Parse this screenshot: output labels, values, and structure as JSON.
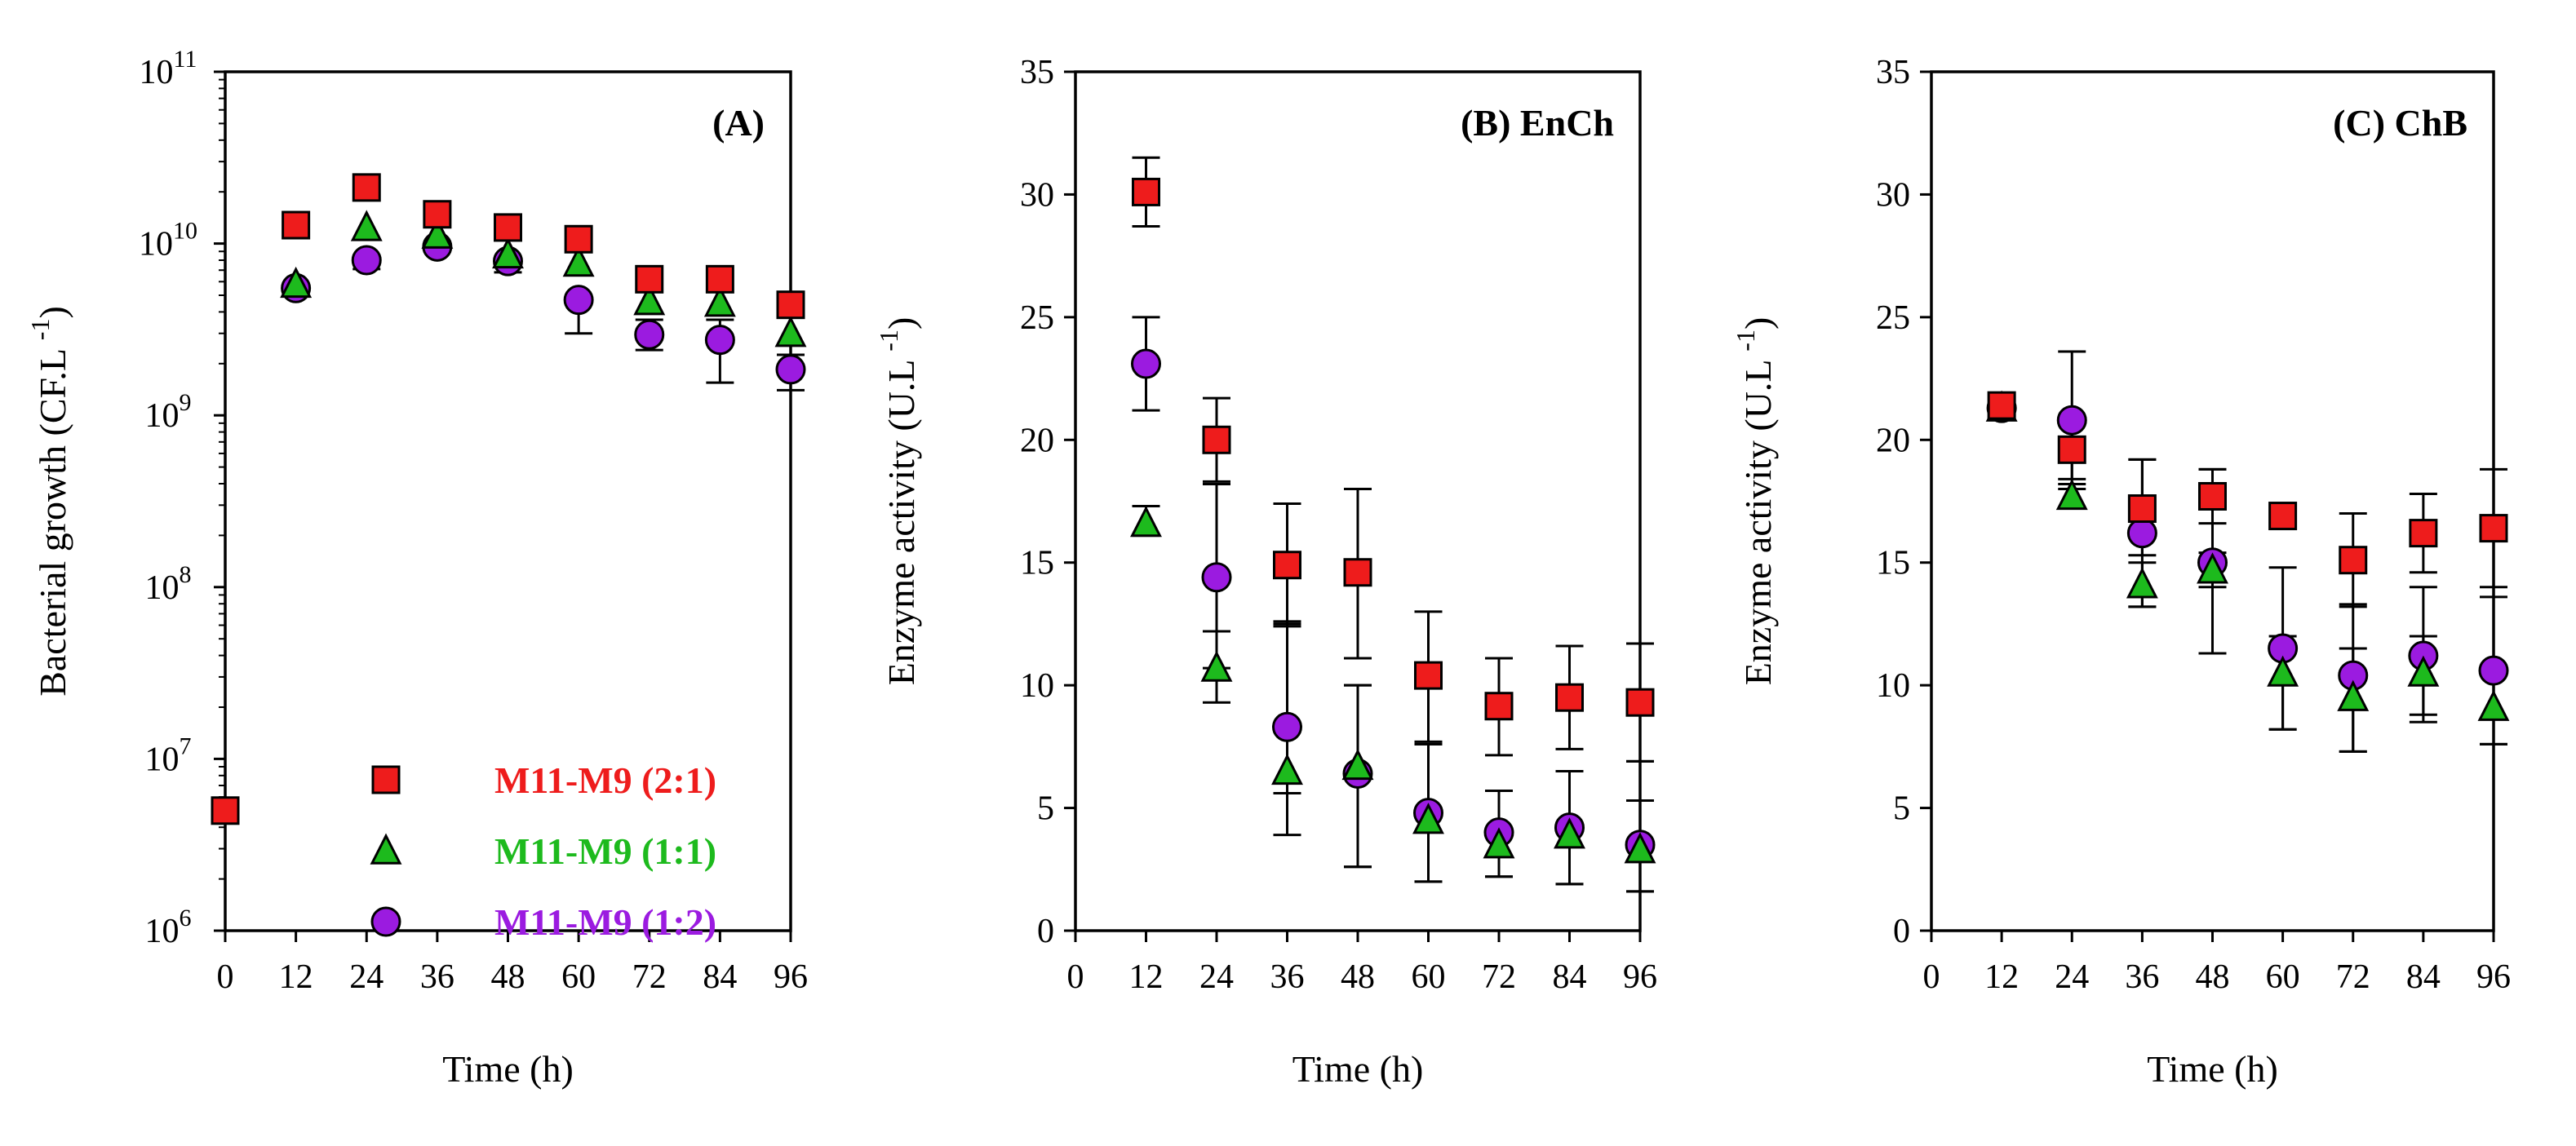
{
  "chart_data": [
    {
      "type": "scatter",
      "panel_label": "(A)",
      "title": "",
      "xlabel": "Time (h)",
      "ylabel_main": "Bacterial growth (CF.L",
      "ylabel_sup": "-1",
      "ylabel_close": ")",
      "yscale": "log",
      "xlim": [
        0,
        96
      ],
      "ylim": [
        1000000,
        100000000000
      ],
      "x_ticks": [
        0,
        12,
        24,
        36,
        48,
        60,
        72,
        84,
        96
      ],
      "x_tick_labels": [
        "0",
        "12",
        "24",
        "36",
        "48",
        "60",
        "72",
        "84",
        "96"
      ],
      "y_ticks": [
        1000000,
        10000000,
        100000000,
        1000000000,
        10000000000,
        100000000000
      ],
      "y_tick_bases": [
        "10",
        "10",
        "10",
        "10",
        "10",
        "10"
      ],
      "y_tick_exps": [
        "6",
        "7",
        "8",
        "9",
        "10",
        "11"
      ],
      "grid": false,
      "legend": {
        "placement": "bottom-right",
        "entries": [
          "M11-M9 (2:1)",
          "M11-M9 (1:1)",
          "M11-M9 (1:2)"
        ]
      },
      "series": [
        {
          "name": "M11-M9 (2:1)",
          "marker": "square",
          "color": "#ee1c1c",
          "x": [
            0,
            12,
            24,
            36,
            48,
            60,
            72,
            84,
            96
          ],
          "y": [
            5000000,
            12800000000,
            21200000000,
            14800000000,
            12400000000,
            10600000000,
            6200000000,
            6200000000,
            4400000000
          ],
          "err_low": [
            null,
            null,
            null,
            null,
            null,
            null,
            null,
            null,
            null
          ],
          "err_high": [
            null,
            null,
            null,
            null,
            null,
            null,
            null,
            null,
            null
          ]
        },
        {
          "name": "M11-M9 (1:1)",
          "marker": "triangle",
          "color": "#1dba1d",
          "x": [
            12,
            24,
            36,
            48,
            60,
            72,
            84,
            96
          ],
          "y": [
            5800000000,
            12400000000,
            11200000000,
            8600000000,
            7700000000,
            4600000000,
            4500000000,
            3000000000
          ],
          "err_low": [
            null,
            null,
            null,
            null,
            null,
            null,
            null,
            null
          ],
          "err_high": [
            null,
            null,
            null,
            null,
            null,
            null,
            null,
            null
          ]
        },
        {
          "name": "M11-M9 (1:2)",
          "marker": "circle",
          "color": "#9b1be0",
          "x": [
            12,
            24,
            36,
            48,
            60,
            72,
            84,
            96
          ],
          "y": [
            5500000000,
            8000000000,
            9600000000,
            7900000000,
            4700000000,
            2950000000,
            2750000000,
            1850000000
          ],
          "err_low": [
            null,
            7100000000,
            null,
            6800000000,
            3000000000,
            2400000000,
            1550000000,
            1400000000
          ],
          "err_high": [
            null,
            null,
            null,
            null,
            null,
            3600000000,
            3600000000,
            2250000000
          ]
        }
      ]
    },
    {
      "type": "scatter",
      "panel_label": "(B) EnCh",
      "title": "",
      "xlabel": "Time (h)",
      "ylabel_main": "Enzyme activity (U.L",
      "ylabel_sup": "-1",
      "ylabel_close": ")",
      "yscale": "linear",
      "xlim": [
        0,
        96
      ],
      "ylim": [
        0,
        35
      ],
      "x_ticks": [
        0,
        12,
        24,
        36,
        48,
        60,
        72,
        84,
        96
      ],
      "x_tick_labels": [
        "0",
        "12",
        "24",
        "36",
        "48",
        "60",
        "72",
        "84",
        "96"
      ],
      "y_ticks": [
        0,
        5,
        10,
        15,
        20,
        25,
        30,
        35
      ],
      "y_tick_labels": [
        "0",
        "5",
        "10",
        "15",
        "20",
        "25",
        "30",
        "35"
      ],
      "grid": false,
      "series": [
        {
          "name": "M11-M9 (2:1)",
          "marker": "square",
          "color": "#ee1c1c",
          "x": [
            12,
            24,
            36,
            48,
            60,
            72,
            84,
            96
          ],
          "y": [
            30.1,
            20.0,
            14.9,
            14.6,
            10.4,
            9.15,
            9.5,
            9.3
          ],
          "err_low": [
            28.7,
            18.3,
            12.4,
            11.1,
            7.7,
            7.15,
            7.4,
            6.9
          ],
          "err_high": [
            31.5,
            21.7,
            17.4,
            18.0,
            13.0,
            11.1,
            11.6,
            11.7
          ]
        },
        {
          "name": "M11-M9 (1:1)",
          "marker": "triangle",
          "color": "#1dba1d",
          "x": [
            12,
            24,
            36,
            48,
            60,
            72,
            84,
            96
          ],
          "y": [
            16.6,
            10.7,
            6.5,
            6.7,
            4.5,
            3.5,
            3.9,
            3.3
          ],
          "err_low": [
            16.1,
            9.3,
            3.9,
            2.6,
            2.0,
            2.2,
            1.9,
            1.6
          ],
          "err_high": [
            17.3,
            12.2,
            12.6,
            10.0,
            7.6,
            5.7,
            6.5,
            5.3
          ]
        },
        {
          "name": "M11-M9 (1:2)",
          "marker": "circle",
          "color": "#9b1be0",
          "x": [
            12,
            24,
            36,
            48,
            60,
            72,
            84,
            96
          ],
          "y": [
            23.1,
            14.4,
            8.3,
            6.4,
            4.8,
            4.0,
            4.2,
            3.5
          ],
          "err_low": [
            21.2,
            10.7,
            5.6,
            2.6,
            2.0,
            2.2,
            1.9,
            1.6
          ],
          "err_high": [
            25.0,
            18.2,
            12.5,
            10.0,
            7.6,
            5.7,
            6.5,
            6.9
          ]
        }
      ]
    },
    {
      "type": "scatter",
      "panel_label": "(C) ChB",
      "title": "",
      "xlabel": "Time (h)",
      "ylabel_main": "Enzyme activity (U.L",
      "ylabel_sup": "-1",
      "ylabel_close": ")",
      "yscale": "linear",
      "xlim": [
        0,
        96
      ],
      "ylim": [
        0,
        35
      ],
      "x_ticks": [
        0,
        12,
        24,
        36,
        48,
        60,
        72,
        84,
        96
      ],
      "x_tick_labels": [
        "0",
        "12",
        "24",
        "36",
        "48",
        "60",
        "72",
        "84",
        "96"
      ],
      "y_ticks": [
        0,
        5,
        10,
        15,
        20,
        25,
        30,
        35
      ],
      "y_tick_labels": [
        "0",
        "5",
        "10",
        "15",
        "20",
        "25",
        "30",
        "35"
      ],
      "grid": false,
      "series": [
        {
          "name": "M11-M9 (2:1)",
          "marker": "square",
          "color": "#ee1c1c",
          "x": [
            12,
            24,
            36,
            48,
            60,
            72,
            84,
            96
          ],
          "y": [
            21.4,
            19.6,
            17.2,
            17.7,
            16.9,
            15.1,
            16.2,
            16.4
          ],
          "err_low": [
            21.0,
            18.4,
            15.3,
            16.6,
            null,
            13.2,
            14.6,
            14.0
          ],
          "err_high": [
            21.8,
            20.8,
            19.2,
            18.8,
            null,
            17.0,
            17.8,
            18.8
          ]
        },
        {
          "name": "M11-M9 (1:1)",
          "marker": "triangle",
          "color": "#1dba1d",
          "x": [
            12,
            24,
            36,
            48,
            60,
            72,
            84,
            96
          ],
          "y": [
            21.3,
            17.7,
            14.1,
            14.7,
            10.5,
            9.5,
            10.5,
            9.1
          ],
          "err_low": [
            null,
            17.2,
            13.2,
            14.0,
            8.2,
            7.3,
            8.5,
            7.6
          ],
          "err_high": [
            null,
            18.2,
            15.0,
            15.4,
            12.0,
            11.5,
            12.0,
            10.8
          ]
        },
        {
          "name": "M11-M9 (1:2)",
          "marker": "circle",
          "color": "#9b1be0",
          "x": [
            12,
            24,
            36,
            48,
            60,
            72,
            84,
            96
          ],
          "y": [
            21.3,
            20.8,
            16.2,
            15.0,
            11.5,
            10.4,
            11.2,
            10.6
          ],
          "err_low": [
            null,
            18.0,
            13.2,
            11.3,
            8.2,
            7.3,
            8.8,
            7.6
          ],
          "err_high": [
            null,
            23.6,
            19.2,
            18.8,
            14.8,
            13.3,
            14.0,
            13.6
          ]
        }
      ]
    }
  ]
}
